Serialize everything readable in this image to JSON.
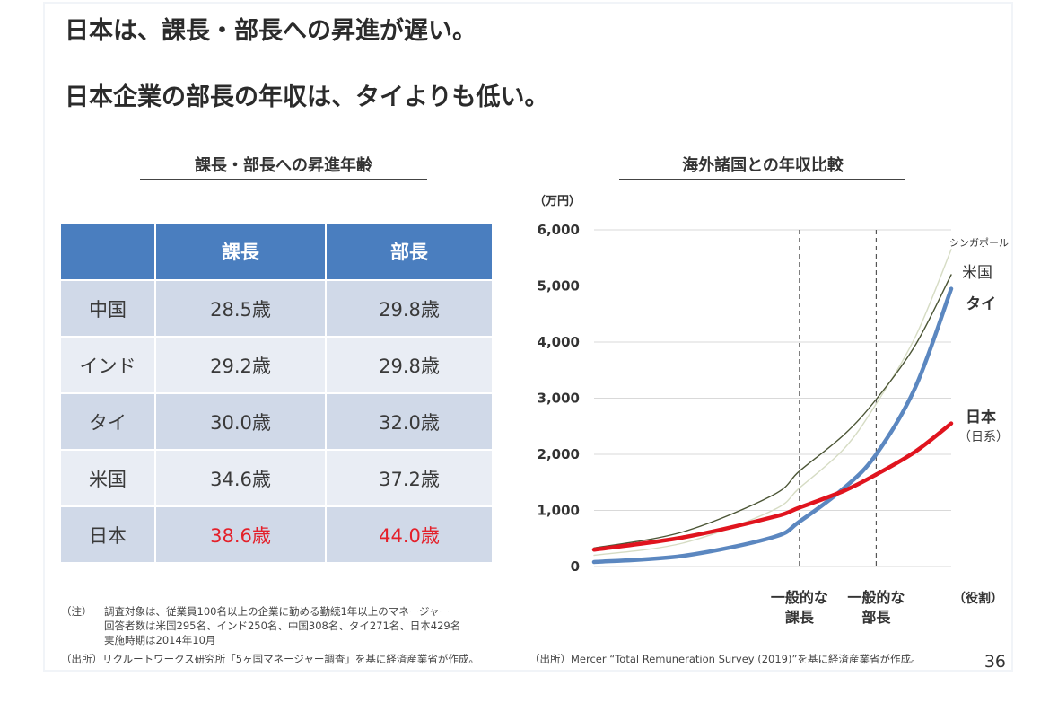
{
  "slide": {
    "headline_1": "日本は、課長・部長への昇進が遅い。",
    "headline_2": "日本企業の部長の年収は、タイよりも低い。",
    "page_number": "36"
  },
  "left_section": {
    "title": "課長・部長への昇進年齢",
    "table": {
      "headers": [
        "",
        "課長",
        "部長"
      ],
      "rows": [
        {
          "country": "中国",
          "kacho": "28.5歳",
          "bucho": "29.8歳",
          "highlight": false
        },
        {
          "country": "インド",
          "kacho": "29.2歳",
          "bucho": "29.8歳",
          "highlight": false
        },
        {
          "country": "タイ",
          "kacho": "30.0歳",
          "bucho": "32.0歳",
          "highlight": false
        },
        {
          "country": "米国",
          "kacho": "34.6歳",
          "bucho": "37.2歳",
          "highlight": false
        },
        {
          "country": "日本",
          "kacho": "38.6歳",
          "bucho": "44.0歳",
          "highlight": true
        }
      ],
      "highlight_color": "#e4202a",
      "header_color": "#4a7ebf"
    },
    "note_label": "（注）",
    "note_lines": [
      "調査対象は、従業員100名以上の企業に勤める勤続1年以上のマネージャー",
      "回答者数は米国295名、インド250名、中国308名、タイ271名、日本429名",
      "実施時期は2014年10月"
    ],
    "source": "（出所）リクルートワークス研究所「5ヶ国マネージャー調査」を基に経済産業省が作成。"
  },
  "right_section": {
    "title": "海外諸国との年収比較",
    "source": "（出所）Mercer “Total Remuneration Survey (2019)”を基に経済産業省が作成。"
  },
  "chart_data": {
    "type": "line",
    "title": "海外諸国との年収比較",
    "ylabel": "（万円）",
    "xlabel": "（役割）",
    "ylim": [
      0,
      6000
    ],
    "yticks": [
      0,
      1000,
      2000,
      3000,
      4000,
      5000,
      6000
    ],
    "ytick_labels": [
      "0",
      "1,000",
      "2,000",
      "3,000",
      "4,000",
      "5,000",
      "6,000"
    ],
    "grid": true,
    "x": [
      0,
      0.25,
      0.5,
      0.575,
      0.7,
      0.79,
      0.9,
      1.0
    ],
    "x_markers": [
      {
        "x": 0.575,
        "label_line1": "一般的な",
        "label_line2": "課長"
      },
      {
        "x": 0.79,
        "label_line1": "一般的な",
        "label_line2": "部長"
      }
    ],
    "series": [
      {
        "name": "シンガポール",
        "color": "#d6dcc4",
        "width": "thin",
        "values": [
          200,
          420,
          1000,
          1400,
          2100,
          2900,
          4100,
          5650
        ]
      },
      {
        "name": "米国",
        "color": "#4b5535",
        "width": "thin",
        "values": [
          330,
          620,
          1270,
          1700,
          2350,
          2980,
          3950,
          5200
        ]
      },
      {
        "name": "タイ",
        "color": "#5b87c0",
        "width": "thick",
        "values": [
          80,
          190,
          520,
          800,
          1400,
          2000,
          3200,
          4950
        ]
      },
      {
        "name": "日本",
        "sublabel": "（日系）",
        "color": "#e0141e",
        "width": "thick",
        "values": [
          300,
          520,
          880,
          1050,
          1350,
          1640,
          2050,
          2550
        ]
      }
    ]
  }
}
